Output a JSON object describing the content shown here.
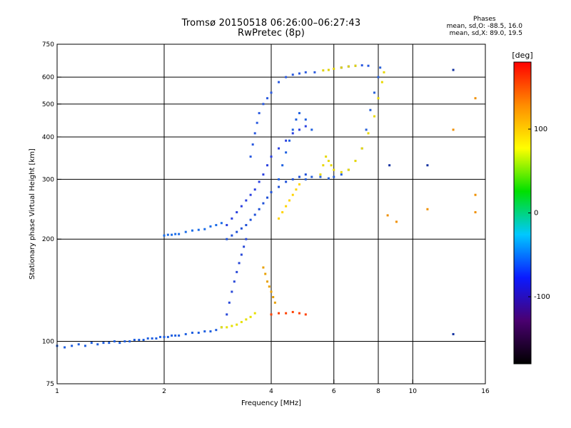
{
  "header": {
    "title_line1": "Tromsø 20150518 06:26:00–06:27:43",
    "title_line2": "RwPretec (8p)"
  },
  "phase_info": {
    "heading": "Phases",
    "line_o": "mean, sd,O: -88.5, 16.0",
    "line_x": "mean, sd,X:  89.0, 19.5"
  },
  "chart_data": {
    "type": "scatter",
    "xlabel": "Frequency [MHz]",
    "ylabel": "Stationary phase Virtual Height [km]",
    "x_scale": "log",
    "y_scale": "log",
    "xlim": [
      1,
      16
    ],
    "ylim": [
      75,
      750
    ],
    "x_ticks": [
      1,
      2,
      4,
      6,
      8,
      10,
      16
    ],
    "y_ticks": [
      75,
      100,
      200,
      300,
      400,
      500,
      600,
      750
    ],
    "grid": true,
    "colorbar": {
      "label": "[deg]",
      "range": [
        -180,
        180
      ],
      "ticks": [
        -100,
        0,
        100
      ],
      "colors": [
        "#000000",
        "#4a0070",
        "#0a1aff",
        "#00c8ff",
        "#00e000",
        "#ffff00",
        "#ff8c00",
        "#ff0000"
      ]
    },
    "series": [
      {
        "color": "#1f5fe0",
        "points": [
          [
            1.0,
            97
          ],
          [
            1.05,
            96
          ],
          [
            1.1,
            97
          ],
          [
            1.15,
            98
          ],
          [
            1.2,
            97
          ],
          [
            1.25,
            99
          ],
          [
            1.3,
            98
          ],
          [
            1.35,
            99
          ],
          [
            1.4,
            99
          ],
          [
            1.45,
            100
          ],
          [
            1.5,
            99
          ],
          [
            1.55,
            100
          ],
          [
            1.6,
            100
          ],
          [
            1.65,
            101
          ],
          [
            1.7,
            101
          ],
          [
            1.75,
            101
          ],
          [
            1.8,
            102
          ],
          [
            1.85,
            102
          ],
          [
            1.9,
            102
          ],
          [
            1.95,
            103
          ],
          [
            2.0,
            103
          ],
          [
            2.05,
            103
          ],
          [
            2.1,
            104
          ],
          [
            2.15,
            104
          ],
          [
            2.2,
            104
          ],
          [
            2.3,
            105
          ],
          [
            2.4,
            106
          ],
          [
            2.5,
            106
          ],
          [
            2.6,
            107
          ],
          [
            2.7,
            107
          ],
          [
            2.8,
            108
          ],
          [
            2.9,
            110
          ]
        ]
      },
      {
        "color": "#1a6ce8",
        "points": [
          [
            2.0,
            205
          ],
          [
            2.05,
            206
          ],
          [
            2.1,
            206
          ],
          [
            2.15,
            207
          ],
          [
            2.2,
            207
          ],
          [
            2.3,
            210
          ],
          [
            2.4,
            212
          ],
          [
            2.5,
            213
          ],
          [
            2.6,
            214
          ],
          [
            2.7,
            218
          ],
          [
            2.8,
            220
          ],
          [
            2.9,
            223
          ]
        ]
      },
      {
        "color": "#2a40e0",
        "points": [
          [
            3.0,
            220
          ],
          [
            3.1,
            230
          ],
          [
            3.2,
            240
          ],
          [
            3.3,
            250
          ],
          [
            3.4,
            260
          ],
          [
            3.5,
            270
          ],
          [
            3.6,
            280
          ],
          [
            3.7,
            295
          ],
          [
            3.8,
            310
          ],
          [
            3.9,
            330
          ],
          [
            4.0,
            350
          ],
          [
            4.2,
            370
          ],
          [
            4.4,
            390
          ],
          [
            4.6,
            410
          ],
          [
            4.8,
            420
          ],
          [
            5.0,
            430
          ]
        ]
      },
      {
        "color": "#1e50d8",
        "points": [
          [
            3.0,
            200
          ],
          [
            3.1,
            205
          ],
          [
            3.2,
            210
          ],
          [
            3.3,
            215
          ],
          [
            3.4,
            220
          ],
          [
            3.5,
            228
          ],
          [
            3.6,
            236
          ],
          [
            3.7,
            245
          ],
          [
            3.8,
            255
          ],
          [
            3.9,
            265
          ],
          [
            4.0,
            275
          ],
          [
            4.2,
            285
          ],
          [
            4.4,
            295
          ],
          [
            4.6,
            300
          ],
          [
            4.8,
            305
          ],
          [
            5.0,
            310
          ]
        ]
      },
      {
        "color": "#2848d8",
        "points": [
          [
            3.0,
            120
          ],
          [
            3.05,
            130
          ],
          [
            3.1,
            140
          ],
          [
            3.15,
            150
          ],
          [
            3.2,
            160
          ],
          [
            3.25,
            170
          ],
          [
            3.3,
            180
          ],
          [
            3.35,
            190
          ],
          [
            3.4,
            200
          ]
        ]
      },
      {
        "color": "#2a5ae0",
        "points": [
          [
            3.5,
            350
          ],
          [
            3.55,
            380
          ],
          [
            3.6,
            410
          ],
          [
            3.65,
            440
          ],
          [
            3.7,
            470
          ],
          [
            3.8,
            500
          ],
          [
            3.9,
            520
          ],
          [
            4.0,
            540
          ],
          [
            4.2,
            580
          ],
          [
            4.4,
            600
          ],
          [
            4.6,
            610
          ],
          [
            4.8,
            615
          ],
          [
            5.0,
            620
          ],
          [
            5.3,
            620
          ]
        ]
      },
      {
        "color": "#1f60e0",
        "points": [
          [
            4.2,
            300
          ],
          [
            4.3,
            330
          ],
          [
            4.4,
            360
          ],
          [
            4.5,
            390
          ],
          [
            4.6,
            420
          ],
          [
            4.7,
            450
          ],
          [
            4.8,
            470
          ],
          [
            5.0,
            450
          ],
          [
            5.2,
            420
          ]
        ]
      },
      {
        "color": "#2860d8",
        "points": [
          [
            5.0,
            300
          ],
          [
            5.2,
            305
          ],
          [
            5.5,
            305
          ],
          [
            5.8,
            302
          ],
          [
            6.0,
            305
          ],
          [
            6.3,
            310
          ],
          [
            6.6,
            320
          ],
          [
            6.9,
            340
          ],
          [
            7.2,
            370
          ],
          [
            7.4,
            420
          ],
          [
            7.6,
            480
          ],
          [
            7.8,
            540
          ],
          [
            8.0,
            600
          ],
          [
            8.1,
            640
          ]
        ]
      },
      {
        "color": "#2858e0",
        "points": [
          [
            6.3,
            640
          ],
          [
            6.6,
            645
          ],
          [
            6.9,
            648
          ],
          [
            7.2,
            650
          ],
          [
            7.5,
            648
          ]
        ]
      },
      {
        "color": "#e8d800",
        "points": [
          [
            5.5,
            310
          ],
          [
            5.6,
            330
          ],
          [
            5.7,
            350
          ],
          [
            5.8,
            340
          ],
          [
            5.9,
            330
          ],
          [
            6.0,
            320
          ],
          [
            6.3,
            315
          ],
          [
            6.6,
            320
          ],
          [
            6.9,
            340
          ],
          [
            7.2,
            370
          ],
          [
            7.5,
            410
          ],
          [
            7.8,
            460
          ],
          [
            8.0,
            520
          ],
          [
            8.2,
            580
          ],
          [
            8.3,
            620
          ]
        ]
      },
      {
        "color": "#ffd400",
        "points": [
          [
            4.2,
            230
          ],
          [
            4.3,
            240
          ],
          [
            4.4,
            250
          ],
          [
            4.5,
            260
          ],
          [
            4.6,
            270
          ],
          [
            4.7,
            280
          ],
          [
            4.8,
            290
          ]
        ]
      },
      {
        "color": "#e6e000",
        "points": [
          [
            2.9,
            110
          ],
          [
            3.0,
            110
          ],
          [
            3.1,
            111
          ],
          [
            3.2,
            112
          ],
          [
            3.3,
            114
          ],
          [
            3.4,
            116
          ],
          [
            3.5,
            118
          ],
          [
            3.6,
            121
          ]
        ]
      },
      {
        "color": "#e0d000",
        "points": [
          [
            5.6,
            628
          ],
          [
            5.8,
            630
          ],
          [
            6.0,
            635
          ],
          [
            6.3,
            640
          ],
          [
            6.6,
            645
          ],
          [
            6.9,
            648
          ]
        ]
      },
      {
        "color": "#e8a000",
        "points": [
          [
            3.8,
            165
          ],
          [
            3.85,
            158
          ],
          [
            3.9,
            150
          ],
          [
            3.95,
            145
          ],
          [
            4.0,
            140
          ],
          [
            4.05,
            135
          ],
          [
            4.1,
            130
          ]
        ]
      },
      {
        "color": "#ff4000",
        "points": [
          [
            4.0,
            120
          ],
          [
            4.2,
            121
          ],
          [
            4.4,
            121
          ],
          [
            4.6,
            122
          ],
          [
            4.8,
            121
          ],
          [
            5.0,
            120
          ]
        ]
      },
      {
        "color": "#f09000",
        "points": [
          [
            13.0,
            420
          ],
          [
            15.0,
            520
          ],
          [
            15.0,
            270
          ],
          [
            15.0,
            240
          ],
          [
            8.5,
            235
          ],
          [
            9.0,
            225
          ],
          [
            11.0,
            245
          ]
        ]
      },
      {
        "color": "#1030a0",
        "points": [
          [
            13.0,
            630
          ],
          [
            13.0,
            105
          ],
          [
            11.0,
            330
          ],
          [
            8.6,
            330
          ]
        ]
      }
    ]
  }
}
